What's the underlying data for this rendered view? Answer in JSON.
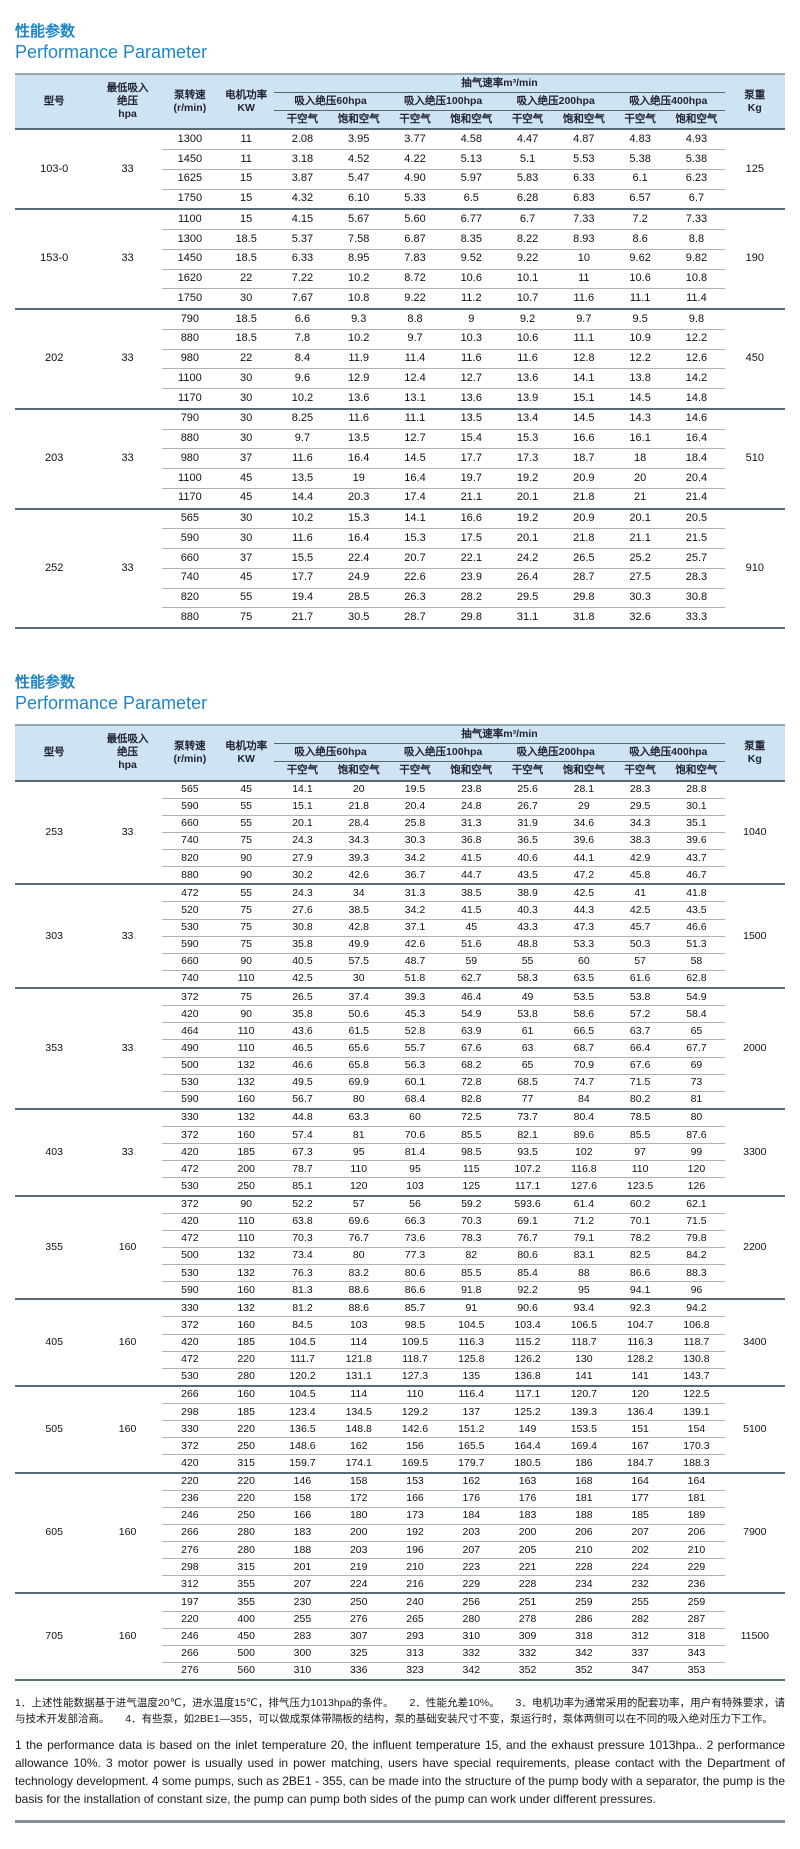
{
  "titles": {
    "zh": "性能参数",
    "en": "Performance Parameter"
  },
  "colors": {
    "title_blue": "#1e86c8",
    "header_bg": "#cfe4f3",
    "group_line": "#5a6b76",
    "row_line": "#a9b3b9"
  },
  "hdr": {
    "model": "型号",
    "min_pressure": "最低吸入\n绝压\nhpa",
    "speed": "泵转速\n(r/min)",
    "power": "电机功率\nKW",
    "rate_title": "抽气速率m³/min",
    "p60": "吸入绝压60hpa",
    "p100": "吸入绝压100hpa",
    "p200": "吸入绝压200hpa",
    "p400": "吸入绝压400hpa",
    "dry": "干空气",
    "saturated": "饱和空气",
    "weight": "泵重\nKg"
  },
  "section1": {
    "groups": [
      {
        "model": "103-0",
        "pressure": "33",
        "weight": "125",
        "rows": [
          [
            "1300",
            "11",
            "2.08",
            "3.95",
            "3.77",
            "4.58",
            "4.47",
            "4.87",
            "4.83",
            "4.93"
          ],
          [
            "1450",
            "11",
            "3.18",
            "4.52",
            "4.22",
            "5.13",
            "5.1",
            "5.53",
            "5.38",
            "5.38"
          ],
          [
            "1625",
            "15",
            "3.87",
            "5.47",
            "4.90",
            "5.97",
            "5.83",
            "6.33",
            "6.1",
            "6.23"
          ],
          [
            "1750",
            "15",
            "4.32",
            "6.10",
            "5.33",
            "6.5",
            "6.28",
            "6.83",
            "6.57",
            "6.7"
          ]
        ]
      },
      {
        "model": "153-0",
        "pressure": "33",
        "weight": "190",
        "rows": [
          [
            "1100",
            "15",
            "4.15",
            "5.67",
            "5.60",
            "6.77",
            "6.7",
            "7.33",
            "7.2",
            "7.33"
          ],
          [
            "1300",
            "18.5",
            "5.37",
            "7.58",
            "6.87",
            "8.35",
            "8.22",
            "8.93",
            "8.6",
            "8.8"
          ],
          [
            "1450",
            "18.5",
            "6.33",
            "8.95",
            "7.83",
            "9.52",
            "9.22",
            "10",
            "9.62",
            "9.82"
          ],
          [
            "1620",
            "22",
            "7.22",
            "10.2",
            "8.72",
            "10.6",
            "10.1",
            "11",
            "10.6",
            "10.8"
          ],
          [
            "1750",
            "30",
            "7.67",
            "10.8",
            "9.22",
            "11.2",
            "10.7",
            "11.6",
            "11.1",
            "11.4"
          ]
        ]
      },
      {
        "model": "202",
        "pressure": "33",
        "weight": "450",
        "rows": [
          [
            "790",
            "18.5",
            "6.6",
            "9.3",
            "8.8",
            "9",
            "9.2",
            "9.7",
            "9.5",
            "9.8"
          ],
          [
            "880",
            "18.5",
            "7.8",
            "10.2",
            "9.7",
            "10.3",
            "10.6",
            "11.1",
            "10.9",
            "12.2"
          ],
          [
            "980",
            "22",
            "8.4",
            "11.9",
            "11.4",
            "11.6",
            "11.6",
            "12.8",
            "12.2",
            "12.6"
          ],
          [
            "1100",
            "30",
            "9.6",
            "12.9",
            "12.4",
            "12.7",
            "13.6",
            "14.1",
            "13.8",
            "14.2"
          ],
          [
            "1170",
            "30",
            "10.2",
            "13.6",
            "13.1",
            "13.6",
            "13.9",
            "15.1",
            "14.5",
            "14.8"
          ]
        ]
      },
      {
        "model": "203",
        "pressure": "33",
        "weight": "510",
        "rows": [
          [
            "790",
            "30",
            "8.25",
            "11.6",
            "11.1",
            "13.5",
            "13.4",
            "14.5",
            "14.3",
            "14.6"
          ],
          [
            "880",
            "30",
            "9.7",
            "13.5",
            "12.7",
            "15.4",
            "15.3",
            "16.6",
            "16.1",
            "16.4"
          ],
          [
            "980",
            "37",
            "11.6",
            "16.4",
            "14.5",
            "17.7",
            "17.3",
            "18.7",
            "18",
            "18.4"
          ],
          [
            "1100",
            "45",
            "13.5",
            "19",
            "16.4",
            "19.7",
            "19.2",
            "20.9",
            "20",
            "20.4"
          ],
          [
            "1170",
            "45",
            "14.4",
            "20.3",
            "17.4",
            "21.1",
            "20.1",
            "21.8",
            "21",
            "21.4"
          ]
        ]
      },
      {
        "model": "252",
        "pressure": "33",
        "weight": "910",
        "rows": [
          [
            "565",
            "30",
            "10.2",
            "15.3",
            "14.1",
            "16.6",
            "19.2",
            "20.9",
            "20.1",
            "20.5"
          ],
          [
            "590",
            "30",
            "11.6",
            "16.4",
            "15.3",
            "17.5",
            "20.1",
            "21.8",
            "21.1",
            "21.5"
          ],
          [
            "660",
            "37",
            "15.5",
            "22.4",
            "20.7",
            "22.1",
            "24.2",
            "26.5",
            "25.2",
            "25.7"
          ],
          [
            "740",
            "45",
            "17.7",
            "24.9",
            "22.6",
            "23.9",
            "26.4",
            "28.7",
            "27.5",
            "28.3"
          ],
          [
            "820",
            "55",
            "19.4",
            "28.5",
            "26.3",
            "28.2",
            "29.5",
            "29.8",
            "30.3",
            "30.8"
          ],
          [
            "880",
            "75",
            "21.7",
            "30.5",
            "28.7",
            "29.8",
            "31.1",
            "31.8",
            "32.6",
            "33.3"
          ]
        ]
      }
    ]
  },
  "section2": {
    "groups": [
      {
        "model": "253",
        "pressure": "33",
        "weight": "1040",
        "rows": [
          [
            "565",
            "45",
            "14.1",
            "20",
            "19.5",
            "23.8",
            "25.6",
            "28.1",
            "28.3",
            "28.8"
          ],
          [
            "590",
            "55",
            "15.1",
            "21.8",
            "20.4",
            "24.8",
            "26.7",
            "29",
            "29.5",
            "30.1"
          ],
          [
            "660",
            "55",
            "20.1",
            "28.4",
            "25.8",
            "31.3",
            "31.9",
            "34.6",
            "34.3",
            "35.1"
          ],
          [
            "740",
            "75",
            "24.3",
            "34.3",
            "30.3",
            "36.8",
            "36.5",
            "39.6",
            "38.3",
            "39.6"
          ],
          [
            "820",
            "90",
            "27.9",
            "39.3",
            "34.2",
            "41.5",
            "40.6",
            "44.1",
            "42.9",
            "43.7"
          ],
          [
            "880",
            "90",
            "30.2",
            "42.6",
            "36.7",
            "44.7",
            "43.5",
            "47.2",
            "45.8",
            "46.7"
          ]
        ]
      },
      {
        "model": "303",
        "pressure": "33",
        "weight": "1500",
        "rows": [
          [
            "472",
            "55",
            "24.3",
            "34",
            "31.3",
            "38.5",
            "38.9",
            "42.5",
            "41",
            "41.8"
          ],
          [
            "520",
            "75",
            "27.6",
            "38.5",
            "34.2",
            "41.5",
            "40.3",
            "44.3",
            "42.5",
            "43.5"
          ],
          [
            "530",
            "75",
            "30.8",
            "42.8",
            "37.1",
            "45",
            "43.3",
            "47.3",
            "45.7",
            "46.6"
          ],
          [
            "590",
            "75",
            "35.8",
            "49.9",
            "42.6",
            "51.6",
            "48.8",
            "53.3",
            "50.3",
            "51.3"
          ],
          [
            "660",
            "90",
            "40.5",
            "57.5",
            "48.7",
            "59",
            "55",
            "60",
            "57",
            "58"
          ],
          [
            "740",
            "110",
            "42.5",
            "30",
            "51.8",
            "62.7",
            "58.3",
            "63.5",
            "61.6",
            "62.8"
          ]
        ]
      },
      {
        "model": "353",
        "pressure": "33",
        "weight": "2000",
        "rows": [
          [
            "372",
            "75",
            "26.5",
            "37.4",
            "39.3",
            "46.4",
            "49",
            "53.5",
            "53.8",
            "54.9"
          ],
          [
            "420",
            "90",
            "35.8",
            "50.6",
            "45.3",
            "54.9",
            "53.8",
            "58.6",
            "57.2",
            "58.4"
          ],
          [
            "464",
            "110",
            "43.6",
            "61.5",
            "52.8",
            "63.9",
            "61",
            "66.5",
            "63.7",
            "65"
          ],
          [
            "490",
            "110",
            "46.5",
            "65.6",
            "55.7",
            "67.6",
            "63",
            "68.7",
            "66.4",
            "67.7"
          ],
          [
            "500",
            "132",
            "46.6",
            "65.8",
            "56.3",
            "68.2",
            "65",
            "70.9",
            "67.6",
            "69"
          ],
          [
            "530",
            "132",
            "49.5",
            "69.9",
            "60.1",
            "72.8",
            "68.5",
            "74.7",
            "71.5",
            "73"
          ],
          [
            "590",
            "160",
            "56.7",
            "80",
            "68.4",
            "82.8",
            "77",
            "84",
            "80.2",
            "81"
          ]
        ]
      },
      {
        "model": "403",
        "pressure": "33",
        "weight": "3300",
        "rows": [
          [
            "330",
            "132",
            "44.8",
            "63.3",
            "60",
            "72.5",
            "73.7",
            "80.4",
            "78.5",
            "80"
          ],
          [
            "372",
            "160",
            "57.4",
            "81",
            "70.6",
            "85.5",
            "82.1",
            "89.6",
            "85.5",
            "87.6"
          ],
          [
            "420",
            "185",
            "67.3",
            "95",
            "81.4",
            "98.5",
            "93.5",
            "102",
            "97",
            "99"
          ],
          [
            "472",
            "200",
            "78.7",
            "110",
            "95",
            "115",
            "107.2",
            "116.8",
            "110",
            "120"
          ],
          [
            "530",
            "250",
            "85.1",
            "120",
            "103",
            "125",
            "117.1",
            "127.6",
            "123.5",
            "126"
          ]
        ]
      },
      {
        "model": "355",
        "pressure": "160",
        "weight": "2200",
        "rows": [
          [
            "372",
            "90",
            "52.2",
            "57",
            "56",
            "59.2",
            "593.6",
            "61.4",
            "60.2",
            "62.1"
          ],
          [
            "420",
            "110",
            "63.8",
            "69.6",
            "66.3",
            "70.3",
            "69.1",
            "71.2",
            "70.1",
            "71.5"
          ],
          [
            "472",
            "110",
            "70.3",
            "76.7",
            "73.6",
            "78.3",
            "76.7",
            "79.1",
            "78.2",
            "79.8"
          ],
          [
            "500",
            "132",
            "73.4",
            "80",
            "77.3",
            "82",
            "80.6",
            "83.1",
            "82.5",
            "84.2"
          ],
          [
            "530",
            "132",
            "76.3",
            "83.2",
            "80.6",
            "85.5",
            "85.4",
            "88",
            "86.6",
            "88.3"
          ],
          [
            "590",
            "160",
            "81.3",
            "88.6",
            "86.6",
            "91.8",
            "92.2",
            "95",
            "94.1",
            "96"
          ]
        ]
      },
      {
        "model": "405",
        "pressure": "160",
        "weight": "3400",
        "rows": [
          [
            "330",
            "132",
            "81.2",
            "88.6",
            "85.7",
            "91",
            "90.6",
            "93.4",
            "92.3",
            "94.2"
          ],
          [
            "372",
            "160",
            "84.5",
            "103",
            "98.5",
            "104.5",
            "103.4",
            "106.5",
            "104.7",
            "106.8"
          ],
          [
            "420",
            "185",
            "104.5",
            "114",
            "109.5",
            "116.3",
            "115.2",
            "118.7",
            "116.3",
            "118.7"
          ],
          [
            "472",
            "220",
            "111.7",
            "121.8",
            "118.7",
            "125.8",
            "126.2",
            "130",
            "128.2",
            "130.8"
          ],
          [
            "530",
            "280",
            "120.2",
            "131.1",
            "127.3",
            "135",
            "136.8",
            "141",
            "141",
            "143.7"
          ]
        ]
      },
      {
        "model": "505",
        "pressure": "160",
        "weight": "5100",
        "rows": [
          [
            "266",
            "160",
            "104.5",
            "114",
            "110",
            "116.4",
            "117.1",
            "120.7",
            "120",
            "122.5"
          ],
          [
            "298",
            "185",
            "123.4",
            "134.5",
            "129.2",
            "137",
            "125.2",
            "139.3",
            "136.4",
            "139.1"
          ],
          [
            "330",
            "220",
            "136.5",
            "148.8",
            "142.6",
            "151.2",
            "149",
            "153.5",
            "151",
            "154"
          ],
          [
            "372",
            "250",
            "148.6",
            "162",
            "156",
            "165.5",
            "164.4",
            "169.4",
            "167",
            "170.3"
          ],
          [
            "420",
            "315",
            "159.7",
            "174.1",
            "169.5",
            "179.7",
            "180.5",
            "186",
            "184.7",
            "188.3"
          ]
        ]
      },
      {
        "model": "605",
        "pressure": "160",
        "weight": "7900",
        "rows": [
          [
            "220",
            "220",
            "146",
            "158",
            "153",
            "162",
            "163",
            "168",
            "164",
            "164"
          ],
          [
            "236",
            "220",
            "158",
            "172",
            "166",
            "176",
            "176",
            "181",
            "177",
            "181"
          ],
          [
            "246",
            "250",
            "166",
            "180",
            "173",
            "184",
            "183",
            "188",
            "185",
            "189"
          ],
          [
            "266",
            "280",
            "183",
            "200",
            "192",
            "203",
            "200",
            "206",
            "207",
            "206"
          ],
          [
            "276",
            "280",
            "188",
            "203",
            "196",
            "207",
            "205",
            "210",
            "202",
            "210"
          ],
          [
            "298",
            "315",
            "201",
            "219",
            "210",
            "223",
            "221",
            "228",
            "224",
            "229"
          ],
          [
            "312",
            "355",
            "207",
            "224",
            "216",
            "229",
            "228",
            "234",
            "232",
            "236"
          ]
        ]
      },
      {
        "model": "705",
        "pressure": "160",
        "weight": "11500",
        "rows": [
          [
            "197",
            "355",
            "230",
            "250",
            "240",
            "256",
            "251",
            "259",
            "255",
            "259"
          ],
          [
            "220",
            "400",
            "255",
            "276",
            "265",
            "280",
            "278",
            "286",
            "282",
            "287"
          ],
          [
            "246",
            "450",
            "283",
            "307",
            "293",
            "310",
            "309",
            "318",
            "312",
            "318"
          ],
          [
            "266",
            "500",
            "300",
            "325",
            "313",
            "332",
            "332",
            "342",
            "337",
            "343"
          ],
          [
            "276",
            "560",
            "310",
            "336",
            "323",
            "342",
            "352",
            "352",
            "347",
            "353"
          ]
        ]
      }
    ]
  },
  "notes": {
    "zh": "1．上述性能数据基于进气温度20℃，进水温度15℃，排气压力1013hpa的条件。　　2．性能允差10%。　　3．电机功率为通常采用的配套功率，用户有特殊要求，请与技术开发部洽商。　　4．有些泵，如2BE1—355，可以做成泵体带隔板的结构，泵的基础安装尺寸不变，泵运行时，泵体两侧可以在不同的吸入绝对压力下工作。",
    "en": "1 the performance data is based on the inlet temperature 20, the influent temperature 15, and the exhaust pressure 1013hpa.. 2 performance allowance 10%. 3 motor power is usually used in power matching, users have special requirements, please contact with the Department of technology development. 4 some pumps, such as 2BE1 - 355, can be made into the structure of the pump body with a separator, the pump is the basis for the installation of constant size, the pump can pump both sides of the pump can work under different pressures."
  }
}
